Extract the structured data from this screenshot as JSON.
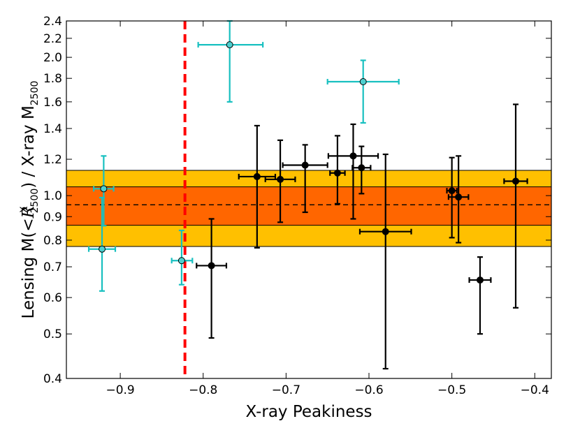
{
  "chart_data": {
    "type": "scatter",
    "xlabel": "X-ray Peakiness",
    "ylabel": {
      "prefix": "Lensing M(",
      "lt": "<",
      "r": "R",
      "r_sup": "X",
      "r_sub": "2500",
      "mid": ") / X-ray M",
      "m_sub": "2500"
    },
    "xlim": [
      -0.965,
      -0.38
    ],
    "ylim": [
      0.4,
      2.4
    ],
    "yscale": "log",
    "xticks": [
      {
        "v": -0.9,
        "label": "−0.9"
      },
      {
        "v": -0.8,
        "label": "−0.8"
      },
      {
        "v": -0.7,
        "label": "−0.7"
      },
      {
        "v": -0.6,
        "label": "−0.6"
      },
      {
        "v": -0.5,
        "label": "−0.5"
      },
      {
        "v": -0.4,
        "label": "−0.4"
      }
    ],
    "yticks": [
      {
        "v": 0.4,
        "label": "0.4"
      },
      {
        "v": 0.5,
        "label": "0.5"
      },
      {
        "v": 0.6,
        "label": "0.6"
      },
      {
        "v": 0.7,
        "label": "0.7"
      },
      {
        "v": 0.8,
        "label": "0.8"
      },
      {
        "v": 0.9,
        "label": "0.9"
      },
      {
        "v": 1.0,
        "label": "1.0"
      },
      {
        "v": 1.2,
        "label": "1.2"
      },
      {
        "v": 1.4,
        "label": "1.4"
      },
      {
        "v": 1.6,
        "label": "1.6"
      },
      {
        "v": 1.8,
        "label": "1.8"
      },
      {
        "v": 2.0,
        "label": "2.0"
      },
      {
        "v": 2.2,
        "label": "2.2"
      },
      {
        "v": 2.4,
        "label": "2.4"
      }
    ],
    "bands": [
      {
        "name": "outer-band",
        "y0": 0.775,
        "y1": 1.135,
        "color": "#ffc000"
      },
      {
        "name": "inner-band",
        "y0": 0.862,
        "y1": 1.045,
        "color": "#ff6600"
      }
    ],
    "hline": {
      "y": 0.955,
      "color": "#000000",
      "style": "dashed"
    },
    "vline": {
      "x": -0.822,
      "color": "#ff0000",
      "style": "dashed"
    },
    "series": [
      {
        "name": "cyan",
        "color": "#18c0c0",
        "fill": "#4ecfcf",
        "points": [
          {
            "x": -0.92,
            "y": 1.035,
            "xerr": [
              0.012,
              0.012
            ],
            "yerr": [
              0.86,
              1.22
            ]
          },
          {
            "x": -0.922,
            "y": 0.765,
            "xerr": [
              0.016,
              0.016
            ],
            "yerr": [
              0.62,
              0.99
            ]
          },
          {
            "x": -0.826,
            "y": 0.722,
            "xerr": [
              0.012,
              0.013
            ],
            "yerr": [
              0.64,
              0.84
            ]
          },
          {
            "x": -0.768,
            "y": 2.13,
            "xerr": [
              0.038,
              0.04
            ],
            "yerr": [
              1.6,
              2.4
            ]
          },
          {
            "x": -0.607,
            "y": 1.77,
            "xerr": [
              0.043,
              0.043
            ],
            "yerr": [
              1.44,
              1.97
            ]
          }
        ]
      },
      {
        "name": "black",
        "color": "#000000",
        "fill": "#000000",
        "points": [
          {
            "x": -0.79,
            "y": 0.704,
            "xerr": [
              0.018,
              0.018
            ],
            "yerr": [
              0.49,
              0.89
            ]
          },
          {
            "x": -0.735,
            "y": 1.1,
            "xerr": [
              0.022,
              0.022
            ],
            "yerr": [
              0.77,
              1.42
            ]
          },
          {
            "x": -0.707,
            "y": 1.085,
            "xerr": [
              0.018,
              0.018
            ],
            "yerr": [
              0.875,
              1.32
            ]
          },
          {
            "x": -0.677,
            "y": 1.165,
            "xerr": [
              0.027,
              0.027
            ],
            "yerr": [
              0.92,
              1.29
            ]
          },
          {
            "x": -0.638,
            "y": 1.12,
            "xerr": [
              0.009,
              0.009
            ],
            "yerr": [
              0.96,
              1.35
            ]
          },
          {
            "x": -0.619,
            "y": 1.22,
            "xerr": [
              0.03,
              0.03
            ],
            "yerr": [
              0.89,
              1.43
            ]
          },
          {
            "x": -0.609,
            "y": 1.15,
            "xerr": [
              0.011,
              0.011
            ],
            "yerr": [
              1.01,
              1.28
            ]
          },
          {
            "x": -0.58,
            "y": 0.835,
            "xerr": [
              0.031,
              0.031
            ],
            "yerr": [
              0.42,
              1.23
            ]
          },
          {
            "x": -0.5,
            "y": 1.025,
            "xerr": [
              0.006,
              0.006
            ],
            "yerr": [
              0.81,
              1.21
            ]
          },
          {
            "x": -0.492,
            "y": 0.993,
            "xerr": [
              0.012,
              0.012
            ],
            "yerr": [
              0.79,
              1.22
            ]
          },
          {
            "x": -0.466,
            "y": 0.655,
            "xerr": [
              0.013,
              0.013
            ],
            "yerr": [
              0.5,
              0.735
            ]
          },
          {
            "x": -0.423,
            "y": 1.075,
            "xerr": [
              0.014,
              0.014
            ],
            "yerr": [
              0.57,
              1.58
            ]
          }
        ]
      }
    ]
  }
}
